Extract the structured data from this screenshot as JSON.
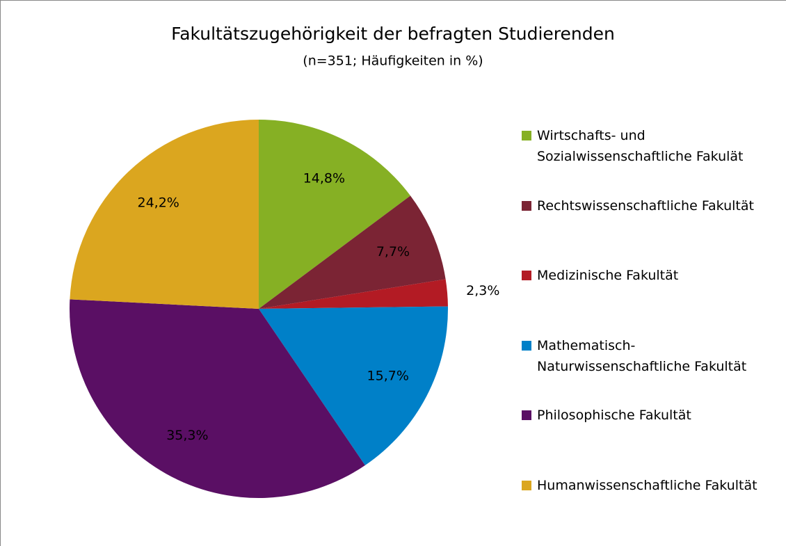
{
  "chart_data": {
    "type": "pie",
    "title": "Fakultätszugehörigkeit der befragten Studierenden",
    "subtitle": "(n=351; Häufigkeiten in %)",
    "categories": [
      "Wirtschafts- und Sozialwissenschaftliche Fakulät",
      "Rechtswissenschaftliche Fakultät",
      "Medizinische Fakultät",
      "Mathematisch-Naturwissenschaftliche Fakultät",
      "Philosophische Fakultät",
      "Humanwissenschaftliche Fakultät"
    ],
    "values": [
      14.8,
      7.7,
      2.3,
      15.7,
      35.3,
      24.2
    ],
    "value_labels": [
      "14,8%",
      "7,7%",
      "2,3%",
      "15,7%",
      "35,3%",
      "24,2%"
    ],
    "colors": [
      "#86b024",
      "#7b2434",
      "#b31b24",
      "#0080c8",
      "#5a0f64",
      "#dba61f"
    ],
    "legend": "right"
  }
}
